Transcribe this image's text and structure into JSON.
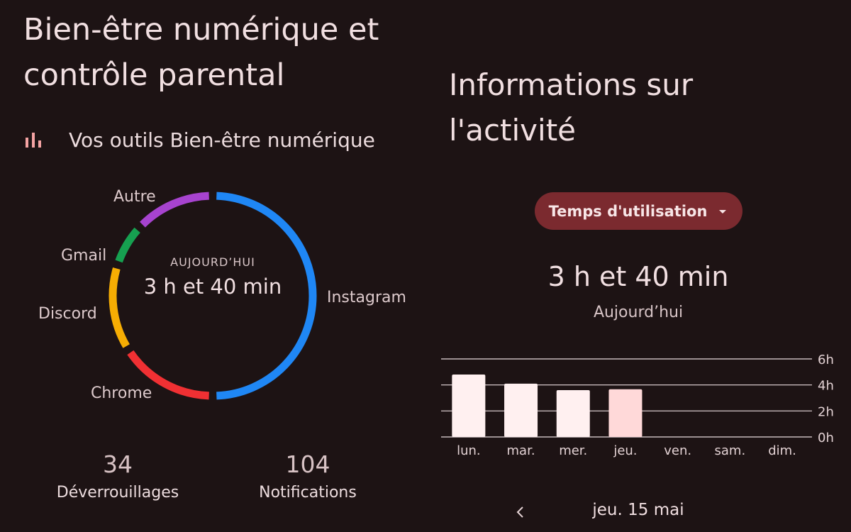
{
  "left": {
    "title_line1": "Bien-être numérique et",
    "title_line2": "contrôle parental",
    "section_label": "Vos outils Bien-être numérique",
    "section_icon": "bar-chart-icon"
  },
  "donut": {
    "caption": "AUJOURD’HUI",
    "total": "3 h et 40 min",
    "segments": [
      {
        "name": "Instagram",
        "color": "#1f87f5",
        "share": 0.5
      },
      {
        "name": "Chrome",
        "color": "#f03033",
        "share": 0.16
      },
      {
        "name": "Discord",
        "color": "#f6ad03",
        "share": 0.14
      },
      {
        "name": "Gmail",
        "color": "#16a050",
        "share": 0.07
      },
      {
        "name": "Autre",
        "color": "#a743cf",
        "share": 0.13
      }
    ]
  },
  "stats": [
    {
      "value": "34",
      "label": "Déverrouillages"
    },
    {
      "value": "104",
      "label": "Notifications"
    }
  ],
  "right": {
    "title_line1": "Informations sur",
    "title_line2": "l'activité",
    "metric_selector": "Temps d'utilisation",
    "total": "3 h et 40 min",
    "total_caption": "Aujourd’hui",
    "date_label": "jeu. 15 mai",
    "prev_icon": "chevron-left-icon",
    "dropdown_icon": "caret-down-icon",
    "accent_color": "#7b2a2f"
  },
  "chart_data": {
    "type": "bar",
    "categories": [
      "lun.",
      "mar.",
      "mer.",
      "jeu.",
      "ven.",
      "sam.",
      "dim."
    ],
    "values": [
      4.8,
      4.1,
      3.6,
      3.67,
      0,
      0,
      0
    ],
    "y_ticks": [
      "0h",
      "2h",
      "4h",
      "6h"
    ],
    "ylim": [
      0,
      6
    ],
    "selected_index": 3,
    "bar_color": "#fff0f0",
    "selected_color": "#ffd9d9",
    "grid": true
  }
}
